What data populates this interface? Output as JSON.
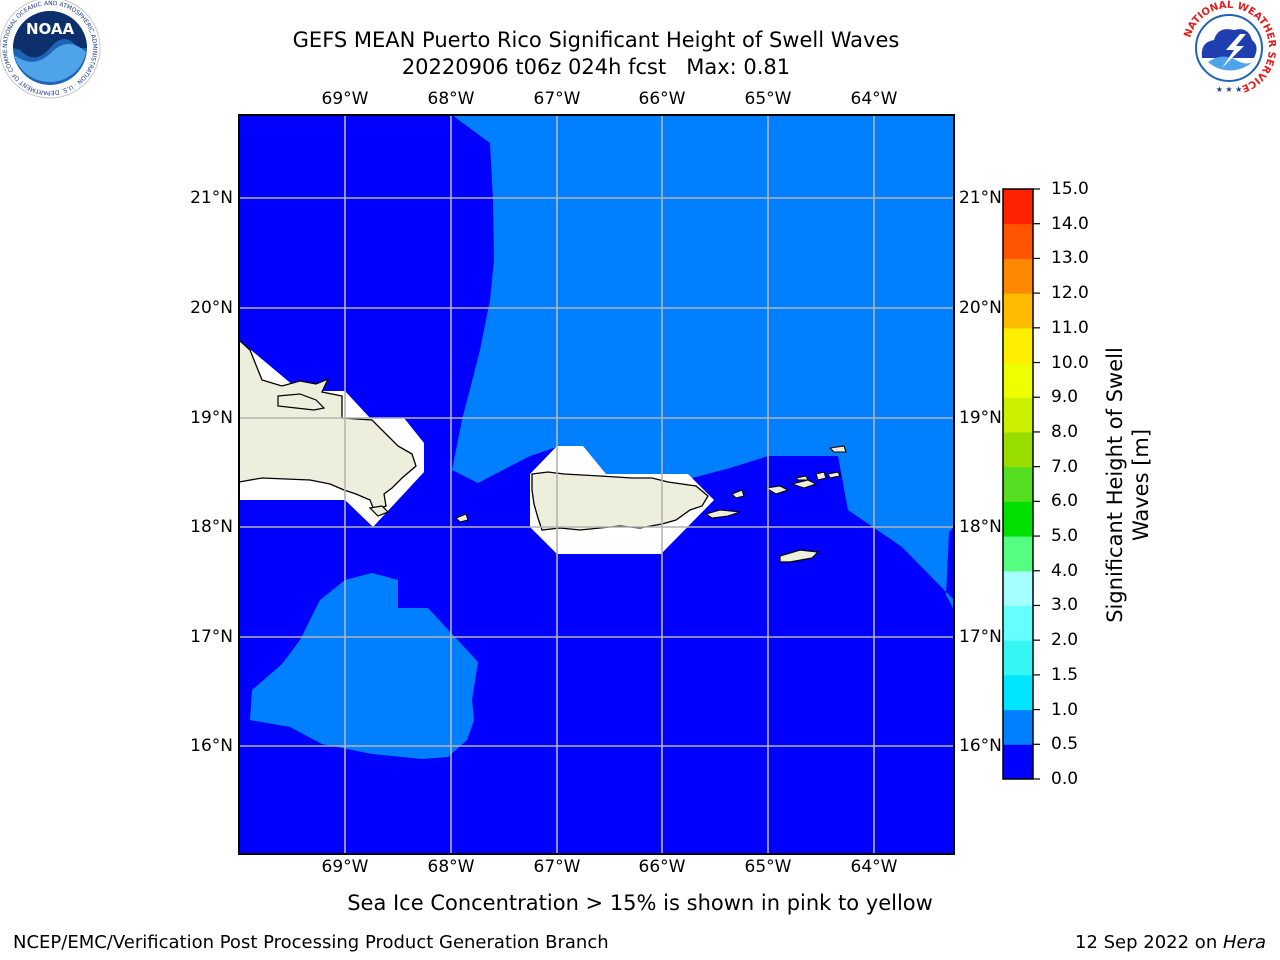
{
  "title": {
    "line1": "GEFS MEAN Puerto Rico Significant Height of Swell Waves",
    "line2": "20220906 t06z 024h fcst   Max: 0.81"
  },
  "logos": {
    "left": {
      "name": "noaa-logo",
      "text": "NOAA",
      "ring_text": "NATIONAL OCEANIC AND ATMOSPHERIC ADMINISTRATION · U.S. DEPARTMENT OF COMMERCE"
    },
    "right": {
      "name": "nws-logo",
      "ring_text": "NATIONAL WEATHER SERVICE"
    }
  },
  "map": {
    "lon_range": [
      -70.0,
      -63.25
    ],
    "lat_range": [
      15.0,
      21.75
    ],
    "x_ticks": [
      "69°W",
      "68°W",
      "67°W",
      "66°W",
      "65°W",
      "64°W"
    ],
    "y_ticks": [
      "21°N",
      "20°N",
      "19°N",
      "18°N",
      "17°N",
      "16°N"
    ],
    "grid": true,
    "colors": {
      "band_0_0_5": "#0000ff",
      "band_0_5_1_0": "#0080ff",
      "land": "#eeeedd",
      "masked": "#ffffff",
      "gridline": "#b4b4b4"
    }
  },
  "colorbar": {
    "title": "Significant Height of Swell\nWaves [m]",
    "levels": [
      "0.0",
      "0.5",
      "1.0",
      "1.5",
      "2.0",
      "3.0",
      "4.0",
      "5.0",
      "6.0",
      "7.0",
      "8.0",
      "9.0",
      "10.0",
      "11.0",
      "12.0",
      "13.0",
      "14.0",
      "15.0"
    ],
    "colors": [
      "#0000ff",
      "#0080ff",
      "#00e5ff",
      "#36f5f5",
      "#66ffff",
      "#a6ffff",
      "#55ff80",
      "#00e000",
      "#55dd22",
      "#99dd00",
      "#ccf000",
      "#eeff00",
      "#ffee00",
      "#ffbb00",
      "#ff8800",
      "#ff5500",
      "#ff2200"
    ]
  },
  "caption": "Sea Ice Concentration > 15% is shown in pink to yellow",
  "footer": {
    "left": "NCEP/EMC/Verification Post Processing Product Generation Branch",
    "right_date": "12 Sep 2022 on ",
    "right_machine": "Hera"
  }
}
